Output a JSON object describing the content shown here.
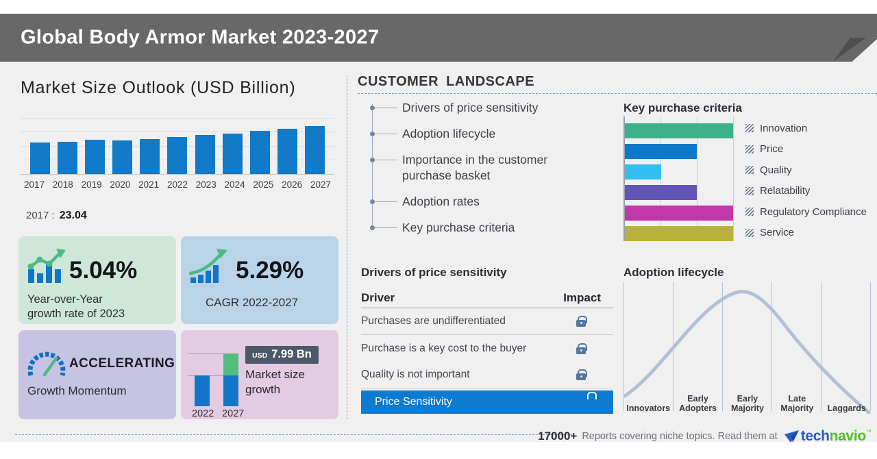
{
  "header": {
    "title": "Global Body Armor Market 2023-2027"
  },
  "market_size": {
    "title": "Market Size Outlook (USD Billion)",
    "base_year_label": "2017 :",
    "base_year_value": "23.04"
  },
  "chart_data": [
    {
      "id": "market_size_outlook",
      "type": "bar",
      "title": "Market Size Outlook (USD Billion)",
      "categories": [
        "2017",
        "2018",
        "2019",
        "2020",
        "2021",
        "2022",
        "2023",
        "2024",
        "2025",
        "2026",
        "2027"
      ],
      "values": [
        23.04,
        23.7,
        25.0,
        24.6,
        25.7,
        27.2,
        28.6,
        29.6,
        31.7,
        33.1,
        35.2
      ],
      "xlabel": "",
      "ylabel": "USD Billion",
      "ylim": [
        0,
        41
      ],
      "grid": true,
      "bar_color": "#117ac9"
    },
    {
      "id": "key_purchase_criteria",
      "type": "bar",
      "orientation": "horizontal",
      "title": "Key purchase criteria",
      "categories": [
        "Innovation",
        "Price",
        "Quality",
        "Relatability",
        "Regulatory Compliance",
        "Service"
      ],
      "values": [
        3,
        2,
        1,
        2,
        3,
        3
      ],
      "xlim": [
        0,
        3
      ],
      "colors": [
        "#3db189",
        "#0e78c8",
        "#33bdf0",
        "#6355b4",
        "#c238ab",
        "#b9b23a"
      ],
      "legend_position": "right"
    },
    {
      "id": "adoption_lifecycle",
      "type": "area",
      "title": "Adoption lifecycle",
      "curve": "bell",
      "categories": [
        "Innovators",
        "Early Adopters",
        "Early Majority",
        "Late Majority",
        "Laggards"
      ],
      "display_labels": [
        "Innovators",
        "Early\nAdopters",
        "Early\nMajority",
        "Late\nMajority",
        "Laggards"
      ],
      "peak_segment": "Early Majority",
      "grid": true
    },
    {
      "id": "market_size_growth",
      "type": "bar",
      "title": "Market size growth",
      "categories": [
        "2022",
        "2027"
      ],
      "values": [
        27.2,
        35.2
      ],
      "growth_amount": 7.99,
      "unit": "USD Bn",
      "bar_color": "#1176c9",
      "growth_color": "#53bd7f"
    }
  ],
  "cards": {
    "yoy": {
      "value": "5.04%",
      "label": "Year-over-Year\ngrowth rate of 2023",
      "bg": "#cfe7d9"
    },
    "cagr": {
      "value": "5.29%",
      "label": "CAGR 2022-2027",
      "bg": "#b9d3e9"
    },
    "momentum": {
      "value": "ACCELERATING",
      "label": "Growth Momentum",
      "bg": "#c7c4e3"
    },
    "growth": {
      "badge_currency": "USD",
      "badge_value": "7.99 Bn",
      "label": "Market size\ngrowth",
      "bg": "#e3cce1"
    }
  },
  "customer_landscape": {
    "title": "CUSTOMER LANDSCAPE",
    "items": [
      "Drivers of price sensitivity",
      "Adoption lifecycle",
      "Importance in the customer purchase basket",
      "Adoption rates",
      "Key purchase criteria"
    ]
  },
  "price_sensitivity": {
    "title": "Drivers of price sensitivity",
    "col_driver": "Driver",
    "col_impact": "Impact",
    "rows": [
      "Purchases are undifferentiated",
      "Purchase is a key cost to the buyer",
      "Quality is not important"
    ],
    "highlight": "Price Sensitivity",
    "highlight_color": "#0c7bd0"
  },
  "kpc": {
    "title": "Key purchase criteria"
  },
  "adoption": {
    "title": "Adoption lifecycle"
  },
  "footer": {
    "count": "17000+",
    "text": "Reports covering niche topics. Read them at",
    "brand_tech": "tech",
    "brand_navio": "navio",
    "tm": "™"
  }
}
